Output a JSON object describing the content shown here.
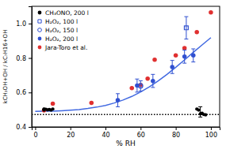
{
  "chart_data": {
    "type": "scatter",
    "xlabel": "% RH",
    "ylabel": "kCH₃OH+OH / kC₇H16+OH",
    "xlim": [
      -2,
      105
    ],
    "ylim": [
      0.4,
      1.1
    ],
    "xticks": [
      0,
      20,
      40,
      60,
      80,
      100
    ],
    "yticks": [
      0.4,
      0.6,
      0.8,
      {
        "value": 1.0,
        "label": "1.0"
      }
    ],
    "grid": false,
    "legend": "upper left",
    "series": [
      {
        "name": "CH₃ONO, 200 l",
        "type": "scatter",
        "color": "black",
        "marker": "circle",
        "x": [
          5,
          5,
          5,
          6,
          7,
          8,
          9,
          10,
          92,
          93,
          94,
          95,
          96,
          97
        ],
        "values": [
          0.502,
          0.498,
          0.504,
          0.503,
          0.499,
          0.501,
          0.498,
          0.504,
          0.504,
          0.498,
          0.476,
          0.48,
          0.472,
          0.47
        ]
      },
      {
        "type": "errorbar",
        "color": "black",
        "x": [
          94
        ],
        "values": [
          0.487
        ],
        "errors": [
          0.03
        ]
      },
      {
        "name": "H₂O₂, 100 l",
        "type": "scatter",
        "color": "#3050d0",
        "marker": "square-open",
        "x": [
          86
        ],
        "values": [
          0.975
        ],
        "errors": [
          0.065
        ]
      },
      {
        "name": "H₂O₂, 150 l",
        "type": "scatter",
        "color": "#3050d0",
        "marker": "circle-open",
        "x": [
          60
        ],
        "values": [
          0.638
        ],
        "errors": [
          0.03
        ]
      },
      {
        "name": "H₂O₂, 200 l",
        "type": "scatter",
        "color": "#3050d0",
        "marker": "circle",
        "x": [
          47,
          58,
          67,
          78,
          85,
          90
        ],
        "values": [
          0.555,
          0.64,
          0.667,
          0.748,
          0.808,
          0.815
        ],
        "errors": [
          0.038,
          0.038,
          0.038,
          0.038,
          0.038,
          0.038
        ]
      },
      {
        "name": "Jara-Toro et al.",
        "type": "scatter",
        "color": "#e03030",
        "marker": "circle",
        "x": [
          5,
          10,
          32,
          55,
          60,
          64,
          68,
          80,
          85,
          92,
          100
        ],
        "values": [
          0.496,
          0.535,
          0.54,
          0.625,
          0.644,
          0.68,
          0.79,
          0.815,
          0.858,
          0.95,
          1.065
        ]
      },
      {
        "type": "line",
        "color": "#4169e1",
        "line_style": "solid",
        "x": [
          0,
          5,
          10,
          15,
          20,
          25,
          30,
          35,
          40,
          45,
          50,
          55,
          60,
          65,
          70,
          75,
          80,
          85,
          90,
          95,
          100
        ],
        "values": [
          0.49,
          0.491,
          0.492,
          0.494,
          0.497,
          0.501,
          0.507,
          0.515,
          0.525,
          0.539,
          0.556,
          0.577,
          0.603,
          0.633,
          0.667,
          0.705,
          0.746,
          0.789,
          0.833,
          0.876,
          0.918
        ]
      },
      {
        "type": "hline",
        "color": "black",
        "line_style": "dotted",
        "values": [
          0.472
        ]
      }
    ]
  }
}
